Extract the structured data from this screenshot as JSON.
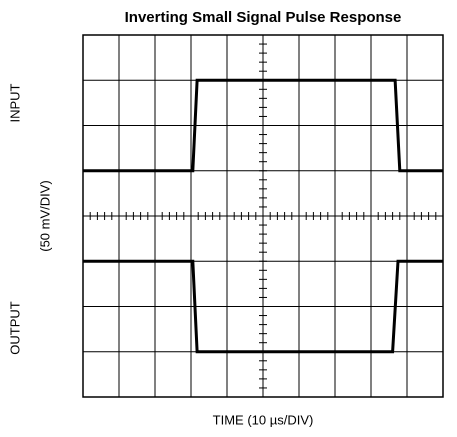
{
  "chart_data": {
    "type": "line",
    "title": "Inverting Small Signal Pulse Response",
    "x_label": "TIME (10 µs/DIV)",
    "y_labels": [
      "INPUT",
      "(50 mV/DIV)",
      "OUTPUT"
    ],
    "xlim": [
      0,
      100
    ],
    "ylim": [
      -200,
      200
    ],
    "xticks": [
      0,
      10,
      20,
      30,
      40,
      50,
      60,
      70,
      80,
      90,
      100
    ],
    "yticks": [
      -200,
      -150,
      -100,
      -50,
      0,
      50,
      100,
      150,
      200
    ],
    "grid": true,
    "series": [
      {
        "color": "#000000",
        "x": [
          0,
          30.5,
          31.7,
          86.7,
          88,
          100
        ],
        "values": [
          50,
          50,
          150,
          150,
          50,
          50
        ]
      },
      {
        "color": "#000000",
        "x": [
          0,
          30.5,
          31.7,
          86,
          87.5,
          100
        ],
        "values": [
          -50,
          -50,
          -150,
          -150,
          -50,
          -50
        ]
      }
    ]
  }
}
